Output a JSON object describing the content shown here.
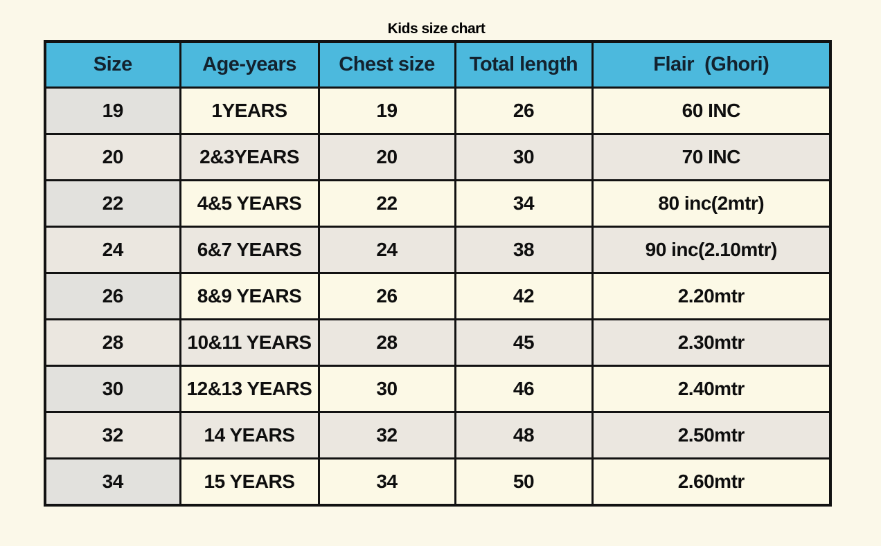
{
  "page": {
    "background": "#fbf8e9"
  },
  "chart_data": {
    "type": "table",
    "title": "Kids size chart",
    "columns": [
      "Size",
      "Age-years",
      "Chest size",
      "Total length",
      "Flair  (Ghori)"
    ],
    "rows": [
      [
        "19",
        "1YEARS",
        "19",
        "26",
        "60 INC"
      ],
      [
        "20",
        "2&3YEARS",
        "20",
        "30",
        "70 INC"
      ],
      [
        "22",
        "4&5 YEARS",
        "22",
        "34",
        "80 inc(2mtr)"
      ],
      [
        "24",
        "6&7 YEARS",
        "24",
        "38",
        "90 inc(2.10mtr)"
      ],
      [
        "26",
        "8&9 YEARS",
        "26",
        "42",
        "2.20mtr"
      ],
      [
        "28",
        "10&11 YEARS",
        "28",
        "45",
        "2.30mtr"
      ],
      [
        "30",
        "12&13 YEARS",
        "30",
        "46",
        "2.40mtr"
      ],
      [
        "32",
        "14 YEARS",
        "32",
        "48",
        "2.50mtr"
      ],
      [
        "34",
        "15 YEARS",
        "34",
        "50",
        "2.60mtr"
      ]
    ],
    "layout_hints": {
      "first_column_shaded": true,
      "alternating_rows": true,
      "grid": "heavy black borders"
    },
    "colors": {
      "header_bg": "#4cb9dd",
      "header_text": "#13222e",
      "size_column_bg": "#e2e1dd",
      "row_light_bg": "#fcf9e6",
      "row_dark_bg": "#ebe7e0",
      "border": "#121212",
      "page_bg": "#fbf8e9",
      "body_text": "#0e0e0e"
    }
  }
}
